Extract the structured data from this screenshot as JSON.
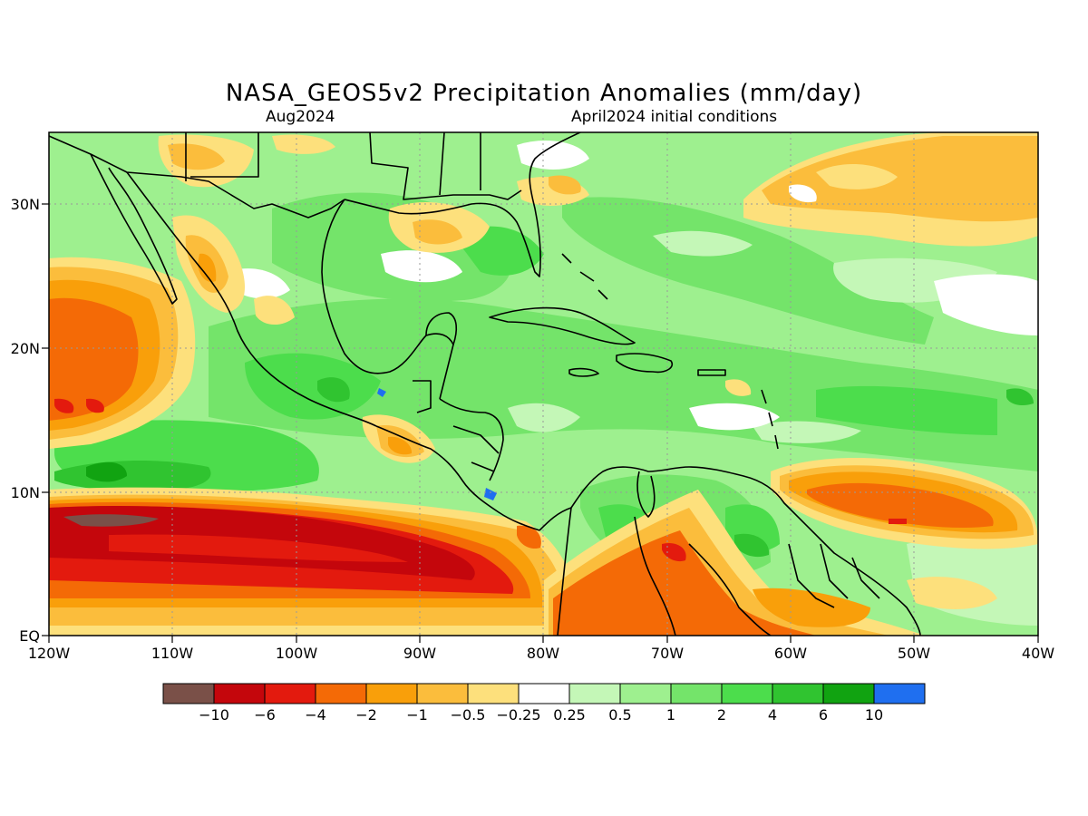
{
  "title": "NASA_GEOS5v2 Precipitation Anomalies (mm/day)",
  "subtitle_left": "Aug2024",
  "subtitle_right": "April2024 initial conditions",
  "axes": {
    "x_ticks": [
      "120W",
      "110W",
      "100W",
      "90W",
      "80W",
      "70W",
      "60W",
      "50W",
      "40W"
    ],
    "y_ticks": [
      "EQ",
      "10N",
      "20N",
      "30N"
    ],
    "lon_range": [
      -120,
      -40
    ],
    "lat_range": [
      0,
      35
    ]
  },
  "legend": {
    "labels": [
      "-10",
      "-6",
      "-4",
      "-2",
      "-1",
      "-0.5",
      "-0.25",
      "0.25",
      "0.5",
      "1",
      "2",
      "4",
      "6",
      "10"
    ],
    "colors": [
      "#7a5048",
      "#c4060c",
      "#e31a0e",
      "#f46a06",
      "#f99f0a",
      "#fbbd3c",
      "#fde07c",
      "#ffffff",
      "#c4f7b7",
      "#9ef08f",
      "#74e46a",
      "#4cdd4c",
      "#30c430",
      "#11a311",
      "#1f6ff0"
    ]
  },
  "colors": {
    "land_outline": "#000000",
    "grid": "#999999"
  }
}
